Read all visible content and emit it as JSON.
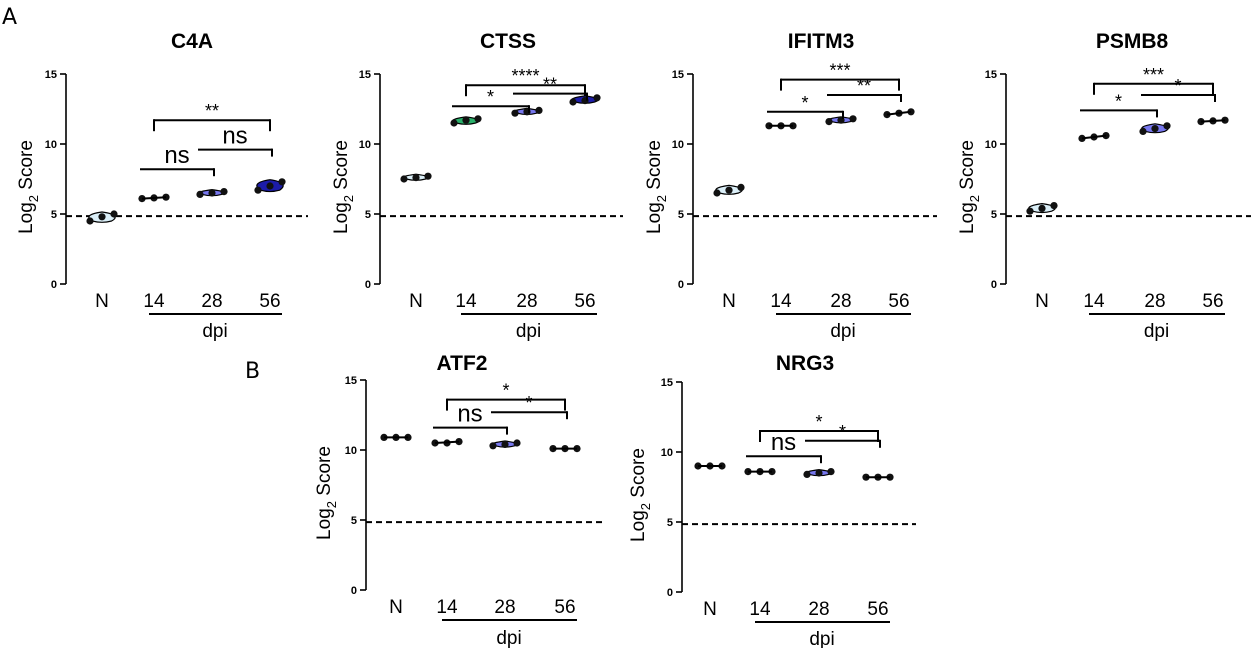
{
  "figure": {
    "panel_a_label": "A",
    "panel_b_label": "B"
  },
  "colors": {
    "normal": "#dbeff8",
    "d14_green": "#2ab06a",
    "d28": "#7777ee",
    "d56": "#1c1ca8",
    "dot": "#111111"
  },
  "chart_data": [
    {
      "type": "violin",
      "panel": "A",
      "title": "C4A",
      "ylabel": "Log2 Score",
      "ylabel_main": "Log",
      "ylabel_sub": "2",
      "ylabel_rest": " Score",
      "ylim": [
        0,
        15
      ],
      "yticks": [
        0,
        5,
        10,
        15
      ],
      "categories": [
        "N",
        "14",
        "28",
        "56"
      ],
      "group_label": "dpi",
      "reference_line": 4.85,
      "groups": [
        {
          "name": "N",
          "values": [
            4.5,
            4.8,
            5.0
          ],
          "fill": "normal"
        },
        {
          "name": "14",
          "values": [
            6.1,
            6.15,
            6.2
          ],
          "fill": "none"
        },
        {
          "name": "28",
          "values": [
            6.4,
            6.5,
            6.6
          ],
          "fill": "d28"
        },
        {
          "name": "56",
          "values": [
            6.7,
            7.0,
            7.3
          ],
          "fill": "d56"
        }
      ],
      "comparisons": [
        {
          "from": "14",
          "to": "56",
          "label": "**",
          "y": 11.7,
          "drops": true
        },
        {
          "from": "14",
          "to": "28",
          "label": "ns",
          "y": 8.2,
          "drops": false
        },
        {
          "from": "28",
          "to": "56",
          "label": "ns",
          "y": 9.6,
          "drops": false
        }
      ]
    },
    {
      "type": "violin",
      "panel": "A",
      "title": "CTSS",
      "ylabel": "Log2 Score",
      "ylabel_main": "Log",
      "ylabel_sub": "2",
      "ylabel_rest": " Score",
      "ylim": [
        0,
        15
      ],
      "yticks": [
        0,
        5,
        10,
        15
      ],
      "categories": [
        "N",
        "14",
        "28",
        "56"
      ],
      "group_label": "dpi",
      "reference_line": 4.85,
      "groups": [
        {
          "name": "N",
          "values": [
            7.5,
            7.6,
            7.7
          ],
          "fill": "normal"
        },
        {
          "name": "14",
          "values": [
            11.5,
            11.7,
            11.8
          ],
          "fill": "d14_green"
        },
        {
          "name": "28",
          "values": [
            12.2,
            12.3,
            12.4
          ],
          "fill": "d28"
        },
        {
          "name": "56",
          "values": [
            13.0,
            13.1,
            13.3
          ],
          "fill": "d56"
        }
      ],
      "comparisons": [
        {
          "from": "14",
          "to": "56",
          "label": "****",
          "y": 14.2,
          "drops": true
        },
        {
          "from": "14",
          "to": "28",
          "label": "*",
          "y": 12.7,
          "drops": false
        },
        {
          "from": "28",
          "to": "56",
          "label": "**",
          "y": 13.6,
          "drops": false
        }
      ]
    },
    {
      "type": "violin",
      "panel": "A",
      "title": "IFITM3",
      "ylabel": "Log2 Score",
      "ylabel_main": "Log",
      "ylabel_sub": "2",
      "ylabel_rest": " Score",
      "ylim": [
        0,
        15
      ],
      "yticks": [
        0,
        5,
        10,
        15
      ],
      "categories": [
        "N",
        "14",
        "28",
        "56"
      ],
      "group_label": "dpi",
      "reference_line": 4.85,
      "groups": [
        {
          "name": "N",
          "values": [
            6.5,
            6.7,
            6.9
          ],
          "fill": "normal"
        },
        {
          "name": "14",
          "values": [
            11.3,
            11.3,
            11.3
          ],
          "fill": "none"
        },
        {
          "name": "28",
          "values": [
            11.6,
            11.7,
            11.8
          ],
          "fill": "d28"
        },
        {
          "name": "56",
          "values": [
            12.1,
            12.2,
            12.3
          ],
          "fill": "none"
        }
      ],
      "comparisons": [
        {
          "from": "14",
          "to": "56",
          "label": "***",
          "y": 14.6,
          "drops": true
        },
        {
          "from": "14",
          "to": "28",
          "label": "*",
          "y": 12.3,
          "drops": false
        },
        {
          "from": "28",
          "to": "56",
          "label": "**",
          "y": 13.5,
          "drops": false
        }
      ]
    },
    {
      "type": "violin",
      "panel": "A",
      "title": "PSMB8",
      "ylabel": "Log2 Score",
      "ylabel_main": "Log",
      "ylabel_sub": "2",
      "ylabel_rest": " Score",
      "ylim": [
        0,
        15
      ],
      "yticks": [
        0,
        5,
        10,
        15
      ],
      "categories": [
        "N",
        "14",
        "28",
        "56"
      ],
      "group_label": "dpi",
      "reference_line": 4.85,
      "groups": [
        {
          "name": "N",
          "values": [
            5.2,
            5.4,
            5.6
          ],
          "fill": "normal"
        },
        {
          "name": "14",
          "values": [
            10.4,
            10.5,
            10.6
          ],
          "fill": "none"
        },
        {
          "name": "28",
          "values": [
            10.9,
            11.1,
            11.3
          ],
          "fill": "d28"
        },
        {
          "name": "56",
          "values": [
            11.6,
            11.65,
            11.7
          ],
          "fill": "none"
        }
      ],
      "comparisons": [
        {
          "from": "14",
          "to": "56",
          "label": "***",
          "y": 14.3,
          "drops": true
        },
        {
          "from": "14",
          "to": "28",
          "label": "*",
          "y": 12.4,
          "drops": false
        },
        {
          "from": "28",
          "to": "56",
          "label": "*",
          "y": 13.5,
          "drops": false
        }
      ]
    },
    {
      "type": "violin",
      "panel": "B",
      "title": "ATF2",
      "ylabel": "Log2 Score",
      "ylabel_main": "Log",
      "ylabel_sub": "2",
      "ylabel_rest": " Score",
      "ylim": [
        0,
        15
      ],
      "yticks": [
        0,
        5,
        10,
        15
      ],
      "categories": [
        "N",
        "14",
        "28",
        "56"
      ],
      "group_label": "dpi",
      "reference_line": 4.85,
      "groups": [
        {
          "name": "N",
          "values": [
            10.9,
            10.9,
            10.9
          ],
          "fill": "none"
        },
        {
          "name": "14",
          "values": [
            10.5,
            10.5,
            10.6
          ],
          "fill": "none"
        },
        {
          "name": "28",
          "values": [
            10.3,
            10.4,
            10.5
          ],
          "fill": "d28"
        },
        {
          "name": "56",
          "values": [
            10.1,
            10.1,
            10.1
          ],
          "fill": "none"
        }
      ],
      "comparisons": [
        {
          "from": "14",
          "to": "56",
          "label": "*",
          "y": 13.6,
          "drops": true
        },
        {
          "from": "14",
          "to": "28",
          "label": "ns",
          "y": 11.6,
          "drops": false
        },
        {
          "from": "28",
          "to": "56",
          "label": "*",
          "y": 12.7,
          "drops": false
        }
      ]
    },
    {
      "type": "violin",
      "panel": "B",
      "title": "NRG3",
      "ylabel": "Log2 Score",
      "ylabel_main": "Log",
      "ylabel_sub": "2",
      "ylabel_rest": " Score",
      "ylim": [
        0,
        15
      ],
      "yticks": [
        0,
        5,
        10,
        15
      ],
      "categories": [
        "N",
        "14",
        "28",
        "56"
      ],
      "group_label": "dpi",
      "reference_line": 4.85,
      "groups": [
        {
          "name": "N",
          "values": [
            9.0,
            9.0,
            9.0
          ],
          "fill": "none"
        },
        {
          "name": "14",
          "values": [
            8.6,
            8.6,
            8.6
          ],
          "fill": "none"
        },
        {
          "name": "28",
          "values": [
            8.4,
            8.5,
            8.6
          ],
          "fill": "d28"
        },
        {
          "name": "56",
          "values": [
            8.2,
            8.2,
            8.2
          ],
          "fill": "none"
        }
      ],
      "comparisons": [
        {
          "from": "14",
          "to": "56",
          "label": "*",
          "y": 11.5,
          "drops": true
        },
        {
          "from": "14",
          "to": "28",
          "label": "ns",
          "y": 9.7,
          "drops": false
        },
        {
          "from": "28",
          "to": "56",
          "label": "*",
          "y": 10.8,
          "drops": false
        }
      ]
    }
  ]
}
